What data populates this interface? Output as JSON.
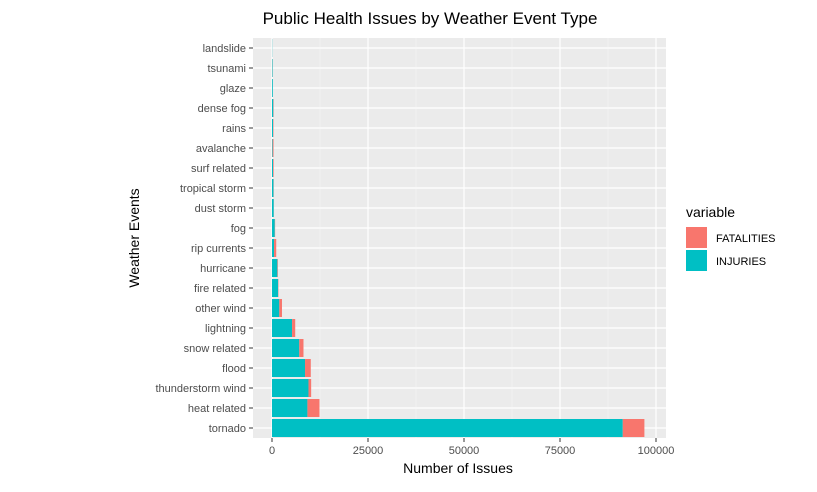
{
  "chart_data": {
    "type": "bar",
    "orientation": "horizontal",
    "stacked": true,
    "title": "Public Health Issues by Weather Event Type",
    "xlabel": "Number of Issues",
    "ylabel": "Weather Events",
    "xlim": [
      0,
      100000
    ],
    "xticks": [
      0,
      25000,
      50000,
      75000,
      100000
    ],
    "xtick_labels": [
      "0",
      "25000",
      "50000",
      "75000",
      "100000"
    ],
    "grid": true,
    "legend_position": "right",
    "legend_title": "variable",
    "categories": [
      "tornado",
      "heat related",
      "thunderstorm wind",
      "flood",
      "snow related",
      "lightning",
      "other wind",
      "fire related",
      "hurricane",
      "rip currents",
      "fog",
      "dust storm",
      "tropical storm",
      "surf related",
      "avalanche",
      "rains",
      "dense fog",
      "glaze",
      "tsunami",
      "landslide"
    ],
    "series": [
      {
        "name": "INJURIES",
        "color": "#00BFC4",
        "values": [
          91346,
          9224,
          9500,
          8600,
          7100,
          5230,
          1900,
          1600,
          1400,
          530,
          730,
          450,
          380,
          260,
          170,
          280,
          340,
          210,
          130,
          50
        ]
      },
      {
        "name": "FATALITIES",
        "color": "#F8766D",
        "values": [
          5633,
          3140,
          700,
          1500,
          1100,
          816,
          700,
          90,
          130,
          570,
          80,
          30,
          60,
          160,
          225,
          110,
          90,
          10,
          30,
          10
        ]
      }
    ]
  }
}
